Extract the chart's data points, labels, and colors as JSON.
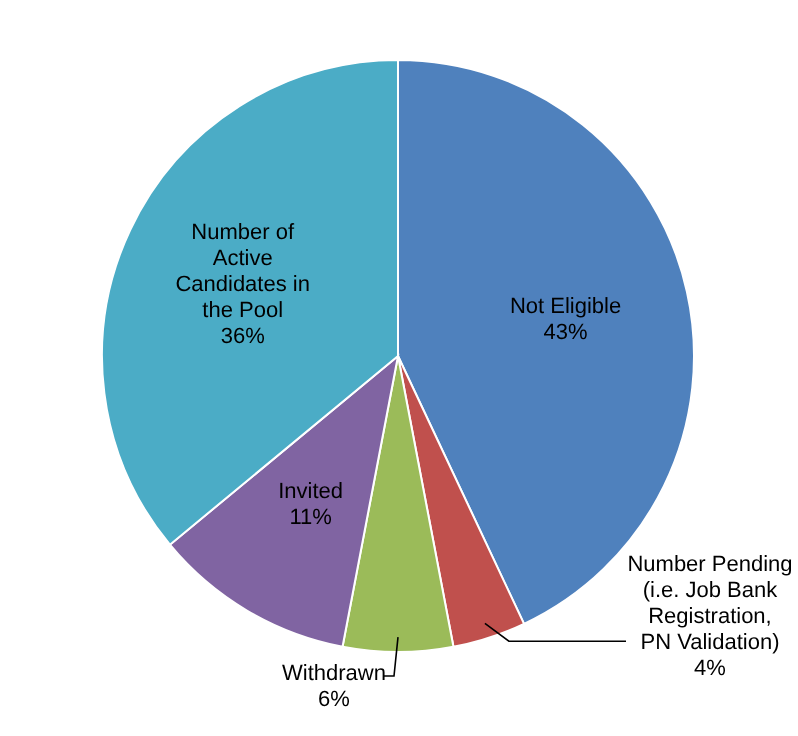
{
  "chart_data": {
    "type": "pie",
    "categories": [
      "Not Eligible",
      "Number Pending (i.e. Job Bank Registration, PN Validation)",
      "Withdrawn",
      "Invited",
      "Number of Active Candidates in the Pool"
    ],
    "values": [
      43,
      4,
      6,
      11,
      36
    ],
    "value_labels": [
      "43%",
      "4%",
      "6%",
      "11%",
      "36%"
    ],
    "colors": [
      "#4f81bd",
      "#c0504d",
      "#9bbb59",
      "#8064a2",
      "#4bacc6"
    ]
  }
}
